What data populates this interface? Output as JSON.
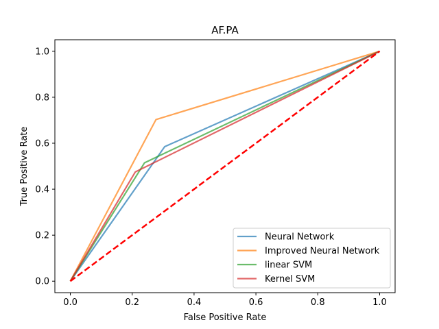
{
  "chart_data": {
    "type": "line",
    "title": "AF.PA",
    "xlabel": "False Positive Rate",
    "ylabel": "True Positive Rate",
    "xlim": [
      -0.05,
      1.05
    ],
    "ylim": [
      -0.05,
      1.05
    ],
    "xticks": [
      0.0,
      0.2,
      0.4,
      0.6,
      0.8,
      1.0
    ],
    "yticks": [
      0.0,
      0.2,
      0.4,
      0.6,
      0.8,
      1.0
    ],
    "xtick_labels": [
      "0.0",
      "0.2",
      "0.4",
      "0.6",
      "0.8",
      "1.0"
    ],
    "ytick_labels": [
      "0.0",
      "0.2",
      "0.4",
      "0.6",
      "0.8",
      "1.0"
    ],
    "grid": false,
    "legend_position": "lower-right",
    "series": [
      {
        "name": "Neural Network",
        "color": "#1f77b4",
        "x": [
          0.0,
          0.305,
          1.0
        ],
        "y": [
          0.0,
          0.585,
          1.0
        ]
      },
      {
        "name": "Improved Neural Network",
        "color": "#ff7f0e",
        "x": [
          0.0,
          0.277,
          1.0
        ],
        "y": [
          0.0,
          0.703,
          1.0
        ]
      },
      {
        "name": "linear SVM",
        "color": "#2ca02c",
        "x": [
          0.0,
          0.24,
          1.0
        ],
        "y": [
          0.0,
          0.515,
          1.0
        ]
      },
      {
        "name": "Kernel SVM",
        "color": "#d62728",
        "x": [
          0.0,
          0.21,
          1.0
        ],
        "y": [
          0.0,
          0.475,
          1.0
        ]
      }
    ],
    "diagonal": {
      "color": "#ff0000",
      "x": [
        0.0,
        1.0
      ],
      "y": [
        0.0,
        1.0
      ],
      "style": "dashed"
    }
  }
}
